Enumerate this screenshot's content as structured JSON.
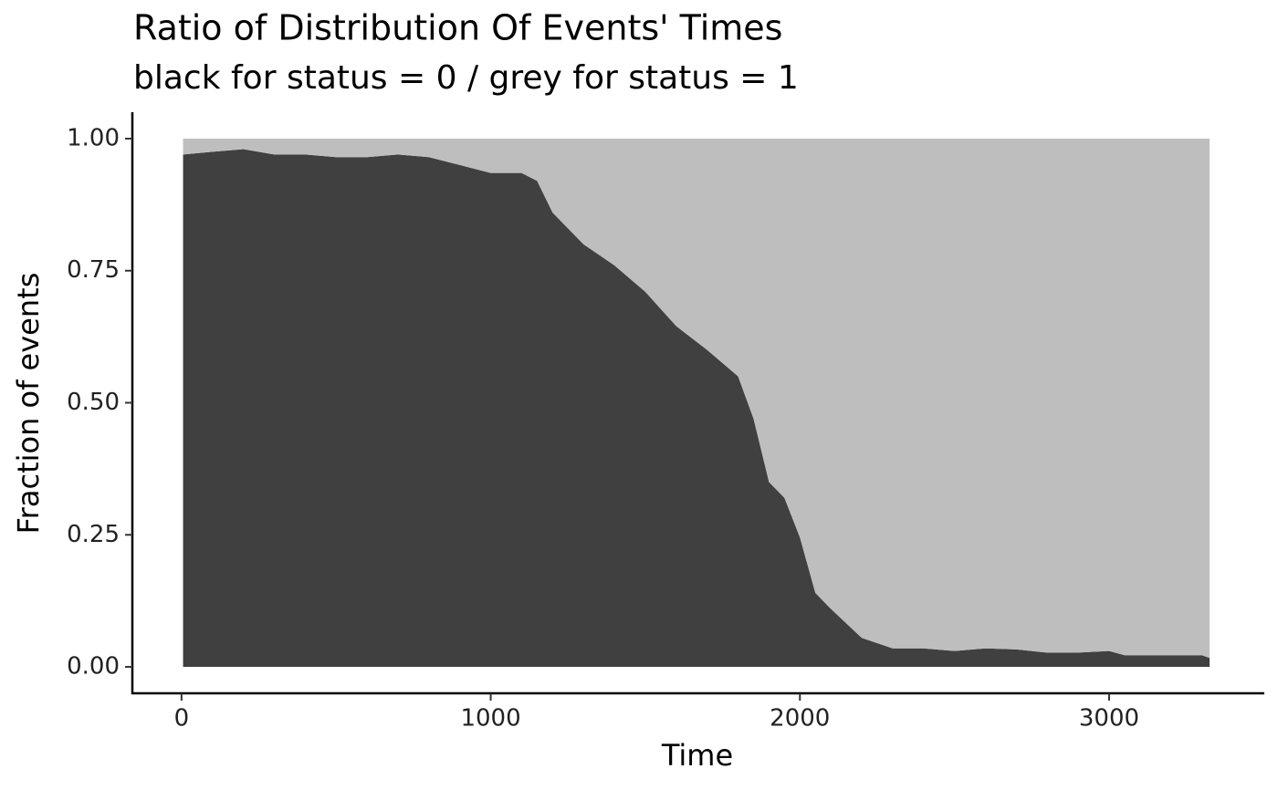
{
  "chart_data": {
    "type": "area",
    "stacked": true,
    "title": "Ratio of Distribution Of Events' Times",
    "subtitle": "black for status = 0 / grey for status = 1",
    "x_label": "Time",
    "y_label": "Fraction of events",
    "x": [
      5,
      100,
      200,
      300,
      400,
      500,
      600,
      700,
      800,
      900,
      1000,
      1100,
      1150,
      1200,
      1300,
      1400,
      1500,
      1600,
      1700,
      1800,
      1850,
      1900,
      1950,
      2000,
      2050,
      2100,
      2200,
      2300,
      2400,
      2500,
      2600,
      2700,
      2800,
      2900,
      3000,
      3050,
      3200,
      3300,
      3325
    ],
    "series": [
      {
        "name": "status = 0",
        "color": "#404040",
        "values": [
          0.97,
          0.975,
          0.98,
          0.97,
          0.97,
          0.965,
          0.965,
          0.97,
          0.965,
          0.95,
          0.935,
          0.935,
          0.92,
          0.86,
          0.8,
          0.76,
          0.71,
          0.645,
          0.6,
          0.55,
          0.47,
          0.35,
          0.32,
          0.245,
          0.14,
          0.11,
          0.055,
          0.035,
          0.035,
          0.03,
          0.035,
          0.033,
          0.027,
          0.027,
          0.03,
          0.022,
          0.022,
          0.022,
          0.017
        ]
      },
      {
        "name": "status = 1",
        "color": "#bebebe",
        "values": [
          0.03,
          0.025,
          0.02,
          0.03,
          0.03,
          0.035,
          0.035,
          0.03,
          0.035,
          0.05,
          0.065,
          0.065,
          0.08,
          0.14,
          0.2,
          0.24,
          0.29,
          0.355,
          0.4,
          0.45,
          0.53,
          0.65,
          0.68,
          0.755,
          0.86,
          0.89,
          0.945,
          0.965,
          0.965,
          0.97,
          0.965,
          0.967,
          0.973,
          0.973,
          0.97,
          0.978,
          0.978,
          0.978,
          0.983
        ]
      }
    ],
    "xlim": [
      -159,
      3502
    ],
    "xticks": [
      0,
      1000,
      2000,
      3000
    ],
    "ylim": [
      -0.05,
      1.05
    ],
    "yticks": [
      {
        "value": 0,
        "label": "0.00"
      },
      {
        "value": 0.25,
        "label": "0.25"
      },
      {
        "value": 0.5,
        "label": "0.50"
      },
      {
        "value": 0.75,
        "label": "0.75"
      },
      {
        "value": 1,
        "label": "1.00"
      }
    ]
  }
}
